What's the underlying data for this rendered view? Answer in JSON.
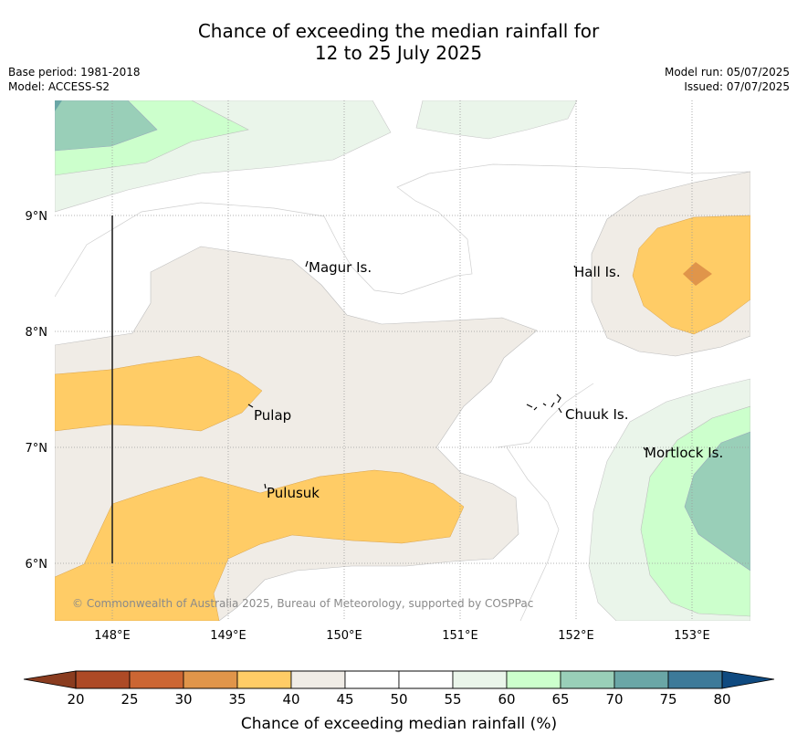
{
  "title_line1": "Chance of exceeding the median rainfall for",
  "title_line2": "12 to 25 July 2025",
  "base_period": "Base period: 1981-2018",
  "model": "Model: ACCESS-S2",
  "model_run": "Model run: 05/07/2025",
  "issued": "Issued: 07/07/2025",
  "copyright": "© Commonwealth of Australia 2025, Bureau of Meteorology, supported by COSPPac",
  "lon_labels": [
    "148°E",
    "149°E",
    "150°E",
    "151°E",
    "152°E",
    "153°E"
  ],
  "lat_labels": [
    "9°N",
    "8°N",
    "7°N",
    "6°N"
  ],
  "places": [
    "Magur Is.",
    "Hall Is.",
    "Pulap",
    "Chuuk Is.",
    "Pulusuk",
    "Mortlock Is."
  ],
  "colorbar": {
    "title": "Chance of exceeding median rainfall (%)",
    "ticks": [
      "20",
      "25",
      "30",
      "35",
      "40",
      "45",
      "50",
      "55",
      "60",
      "65",
      "70",
      "75",
      "80"
    ],
    "colors": [
      "#ad4a26",
      "#cc6633",
      "#e0954a",
      "#ffcc66",
      "#f0ece6",
      "#ffffff",
      "#ffffff",
      "#eaf5ea",
      "#ccffcc",
      "#99cfb8",
      "#6aa6a6",
      "#3d7a99"
    ],
    "under_color": "#8a3c1f",
    "over_color": "#0f4a80"
  }
}
